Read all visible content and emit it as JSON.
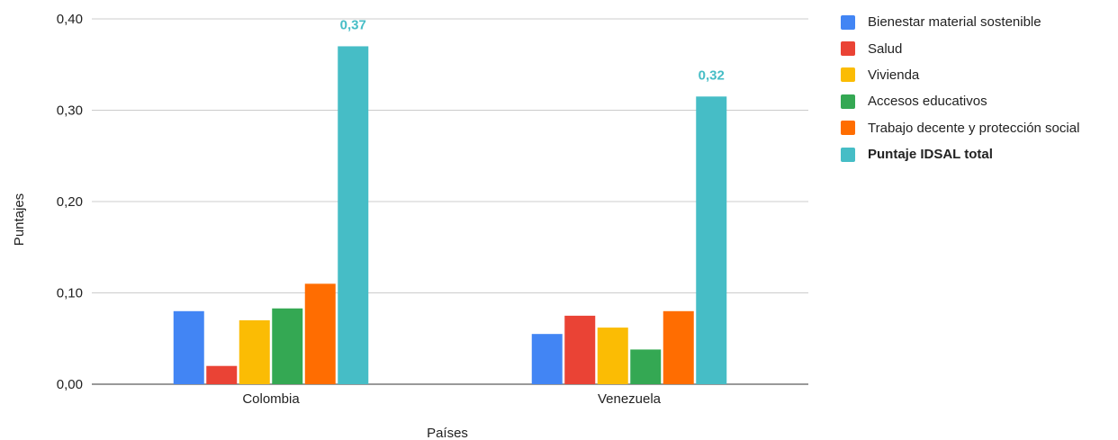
{
  "chart_data": {
    "type": "bar",
    "categories": [
      "Colombia",
      "Venezuela"
    ],
    "series": [
      {
        "name": "Bienestar material sostenible",
        "values": [
          0.08,
          0.055
        ],
        "color": "#4285F4"
      },
      {
        "name": "Salud",
        "values": [
          0.02,
          0.075
        ],
        "color": "#EA4335"
      },
      {
        "name": "Vivienda",
        "values": [
          0.07,
          0.062
        ],
        "color": "#FBBC04"
      },
      {
        "name": "Accesos educativos",
        "values": [
          0.083,
          0.038
        ],
        "color": "#34A853"
      },
      {
        "name": "Trabajo decente y protección social",
        "values": [
          0.11,
          0.08
        ],
        "color": "#FF6D01"
      },
      {
        "name": "Puntaje IDSAL total",
        "values": [
          0.37,
          0.315
        ],
        "color": "#46BDC6",
        "bold": true,
        "data_labels": [
          "0,37",
          "0,32"
        ]
      }
    ],
    "xlabel": "Países",
    "ylabel": "Puntajes",
    "ylim": [
      0,
      0.4
    ],
    "yticks": [
      "0,00",
      "0,10",
      "0,20",
      "0,30",
      "0,40"
    ],
    "grid": true,
    "legend": "right"
  }
}
